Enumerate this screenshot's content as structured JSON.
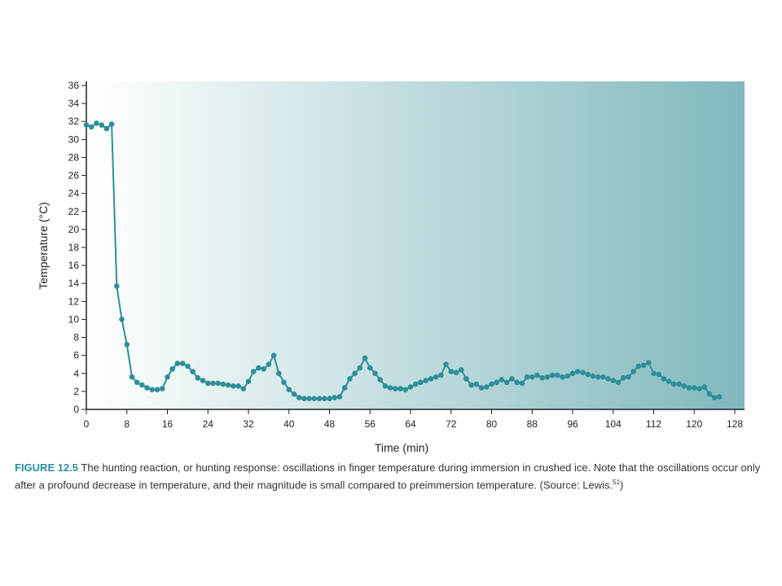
{
  "caption": {
    "figure_label": "FIGURE 12.5",
    "text": " The hunting reaction, or hunting response: oscillations in finger temperature during immersion in crushed ice. Note that the oscillations occur only after a profound decrease in temperature, and their magnitude is small compared to preimmersion temperature. (Source: Lewis.",
    "superscript": "51",
    "suffix": ")"
  },
  "chart_data": {
    "type": "line",
    "xlabel": "Time (min)",
    "ylabel": "Temperature (°C)",
    "xlim": [
      0,
      130
    ],
    "ylim": [
      0,
      36
    ],
    "x_ticks": [
      "0",
      "8",
      "16",
      "24",
      "32",
      "40",
      "48",
      "56",
      "64",
      "72",
      "80",
      "88",
      "96",
      "104",
      "112",
      "120",
      "128"
    ],
    "y_ticks": [
      "0",
      "2",
      "4",
      "6",
      "8",
      "10",
      "12",
      "14",
      "16",
      "18",
      "20",
      "22",
      "24",
      "26",
      "28",
      "30",
      "32",
      "34",
      "36"
    ],
    "grid": false,
    "legend": "none",
    "colors": {
      "line": "#2e8f98",
      "marker": "#2e8f98",
      "bg_start": "#ffffff",
      "bg_end": "#7fb8bd"
    },
    "series": [
      {
        "x": [
          0,
          1,
          2,
          3,
          4,
          5,
          6,
          7,
          8,
          9,
          10,
          11,
          12,
          13,
          14,
          15,
          16,
          17,
          18,
          19,
          20,
          21,
          22,
          23,
          24,
          25,
          26,
          27,
          28,
          29,
          30,
          31,
          32,
          33,
          34,
          35,
          36,
          37,
          38,
          39,
          40,
          41,
          42,
          43,
          44,
          45,
          46,
          47,
          48,
          49,
          50,
          51,
          52,
          53,
          54,
          55,
          56,
          57,
          58,
          59,
          60,
          61,
          62,
          63,
          64,
          65,
          66,
          67,
          68,
          69,
          70,
          71,
          72,
          73,
          74,
          75,
          76,
          77,
          78,
          79,
          80,
          81,
          82,
          83,
          84,
          85,
          86,
          87,
          88,
          89,
          90,
          91,
          92,
          93,
          94,
          95,
          96,
          97,
          98,
          99,
          100,
          101,
          102,
          103,
          104,
          105,
          106,
          107,
          108,
          109,
          110,
          111,
          112,
          113,
          114,
          115,
          116,
          117,
          118,
          119,
          120,
          121,
          122,
          123,
          124,
          125
        ],
        "y": [
          31.6,
          31.4,
          31.8,
          31.6,
          31.2,
          31.7,
          13.7,
          10,
          7.2,
          3.6,
          3.0,
          2.7,
          2.4,
          2.2,
          2.2,
          2.3,
          3.6,
          4.5,
          5.1,
          5.1,
          4.8,
          4.2,
          3.5,
          3.2,
          2.9,
          2.9,
          2.9,
          2.8,
          2.7,
          2.6,
          2.6,
          2.3,
          3.1,
          4.2,
          4.6,
          4.5,
          5.0,
          6.0,
          4.0,
          3.0,
          2.2,
          1.7,
          1.3,
          1.2,
          1.2,
          1.2,
          1.2,
          1.2,
          1.2,
          1.3,
          1.4,
          2.4,
          3.4,
          4.0,
          4.6,
          5.7,
          4.6,
          4.0,
          3.3,
          2.6,
          2.4,
          2.3,
          2.3,
          2.2,
          2.5,
          2.8,
          3.0,
          3.2,
          3.4,
          3.6,
          3.8,
          5.0,
          4.2,
          4.1,
          4.4,
          3.4,
          2.7,
          2.8,
          2.4,
          2.5,
          2.8,
          3.0,
          3.3,
          3.0,
          3.4,
          3.0,
          2.9,
          3.6,
          3.6,
          3.8,
          3.5,
          3.6,
          3.8,
          3.8,
          3.6,
          3.7,
          4.0,
          4.2,
          4.1,
          3.9,
          3.7,
          3.6,
          3.6,
          3.4,
          3.2,
          3.0,
          3.5,
          3.6,
          4.2,
          4.8,
          4.9,
          5.2,
          4.0,
          3.9,
          3.4,
          3.1,
          2.8,
          2.8,
          2.6,
          2.4,
          2.4,
          2.3,
          2.5,
          1.7,
          1.3,
          1.4
        ]
      }
    ]
  }
}
